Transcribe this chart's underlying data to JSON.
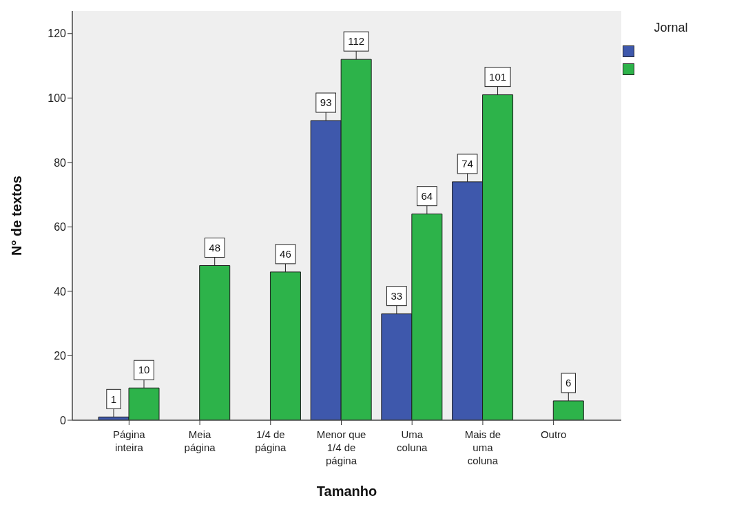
{
  "chart_data": {
    "type": "bar",
    "xlabel": "Tamanho",
    "ylabel": "N° de textos",
    "legend_title": "Jornal",
    "categories": [
      "Página inteira",
      "Meia página",
      "1/4 de página",
      "Menor que 1/4 de página",
      "Uma coluna",
      "Mais de uma coluna",
      "Outro"
    ],
    "series": [
      {
        "color": "#3e58ac",
        "values": [
          1,
          null,
          null,
          93,
          33,
          74,
          null
        ]
      },
      {
        "color": "#2db34a",
        "values": [
          10,
          48,
          46,
          112,
          64,
          101,
          6
        ]
      }
    ],
    "ylim": [
      0,
      127
    ],
    "yticks": [
      0,
      20,
      40,
      60,
      80,
      100,
      120
    ],
    "data_labels": true
  }
}
